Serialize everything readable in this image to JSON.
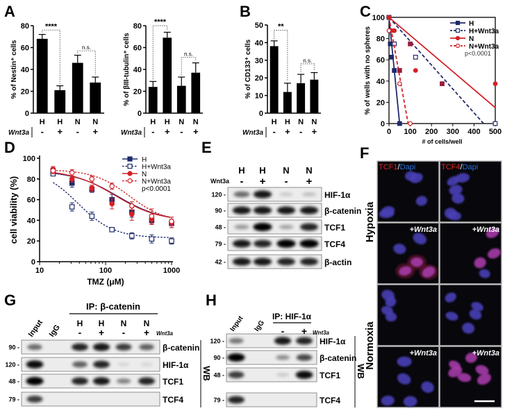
{
  "panel_labels": [
    "A",
    "B",
    "C",
    "D",
    "E",
    "F",
    "G",
    "H"
  ],
  "chart_data": [
    {
      "id": "A1",
      "type": "bar",
      "ylabel": "% of Nestin⁺ cells",
      "ylim": [
        0,
        80
      ],
      "yticks": [
        0,
        20,
        40,
        60,
        80
      ],
      "categories": [
        "H",
        "H",
        "N",
        "N"
      ],
      "wnt3a_label": "Wnt3a",
      "wnt3a": [
        "-",
        "+",
        "-",
        "+"
      ],
      "values": [
        68,
        21,
        46,
        28
      ],
      "errors": [
        4,
        4,
        7,
        5
      ],
      "significance": [
        {
          "pair": [
            0,
            1
          ],
          "label": "****",
          "top": 76
        },
        {
          "pair": [
            2,
            3
          ],
          "label": "n.s.",
          "top": 57
        }
      ]
    },
    {
      "id": "A2",
      "type": "bar",
      "ylabel": "% of βIII-tubulin⁺ cells",
      "ylim": [
        0,
        80
      ],
      "yticks": [
        0,
        20,
        40,
        60,
        80
      ],
      "categories": [
        "H",
        "H",
        "N",
        "N"
      ],
      "wnt3a_label": "Wnt3a",
      "wnt3a": [
        "-",
        "+",
        "-",
        "+"
      ],
      "values": [
        24,
        69,
        25,
        37
      ],
      "errors": [
        5,
        5,
        8,
        9
      ],
      "significance": [
        {
          "pair": [
            0,
            1
          ],
          "label": "****",
          "top": 80
        },
        {
          "pair": [
            2,
            3
          ],
          "label": "n.s.",
          "top": 51
        }
      ]
    },
    {
      "id": "B",
      "type": "bar",
      "ylabel": "% of CD133⁺ cells",
      "ylim": [
        0,
        50
      ],
      "yticks": [
        0,
        10,
        20,
        30,
        40,
        50
      ],
      "categories": [
        "H",
        "H",
        "N",
        "N"
      ],
      "wnt3a_label": "Wnt3a",
      "wnt3a": [
        "-",
        "+",
        "-",
        "+"
      ],
      "values": [
        38,
        12,
        17,
        19
      ],
      "errors": [
        3,
        5,
        5,
        4
      ],
      "significance": [
        {
          "pair": [
            0,
            1
          ],
          "label": "**",
          "top": 47
        },
        {
          "pair": [
            2,
            3
          ],
          "label": "n.s.",
          "top": 28
        }
      ]
    },
    {
      "id": "C",
      "type": "line",
      "xlabel": "# of cells/well",
      "ylabel": "% of wells with no spheres",
      "xlim": [
        0,
        500
      ],
      "ylim": [
        0,
        100
      ],
      "xticks": [
        0,
        100,
        200,
        300,
        400,
        500
      ],
      "yticks": [
        0,
        20,
        40,
        60,
        80,
        100
      ],
      "annotation": "p<0.0001",
      "legend": "top-right",
      "series": [
        {
          "name": "H",
          "color": "#1f2a6b",
          "marker": "square-filled",
          "dash": false,
          "points": [
            [
              0,
              100
            ],
            [
              6,
              75
            ],
            [
              12,
              62.5
            ],
            [
              25,
              50
            ],
            [
              50,
              0
            ]
          ],
          "fit": [
            [
              0,
              100
            ],
            [
              50,
              0
            ]
          ]
        },
        {
          "name": "H+Wnt3a",
          "color": "#1f2a6b",
          "marker": "square-open",
          "dash": true,
          "points": [
            [
              0,
              100
            ],
            [
              25,
              75
            ],
            [
              125,
              62.5
            ],
            [
              500,
              0
            ]
          ],
          "fit": [
            [
              0,
              100
            ],
            [
              445,
              0
            ]
          ]
        },
        {
          "name": "N",
          "color": "#d42027",
          "marker": "circle-filled",
          "dash": false,
          "points": [
            [
              0,
              100
            ],
            [
              12,
              87.5
            ],
            [
              25,
              87.5
            ],
            [
              125,
              50
            ],
            [
              500,
              37.5
            ]
          ],
          "fit": [
            [
              0,
              100
            ],
            [
              500,
              15
            ]
          ]
        },
        {
          "name": "N+Wnt3a",
          "color": "#d42027",
          "marker": "circle-open",
          "dash": true,
          "points": [
            [
              0,
              87.5
            ],
            [
              50,
              37.5
            ],
            [
              100,
              0
            ]
          ],
          "fit": [
            [
              0,
              100
            ],
            [
              90,
              0
            ]
          ]
        },
        {
          "name": "overlap",
          "color": "#9b1b3a",
          "marker": "square-filled",
          "dash": false,
          "legend": false,
          "points": [
            [
              50,
              50
            ],
            [
              100,
              75
            ],
            [
              250,
              37.5
            ]
          ],
          "fit": []
        }
      ]
    },
    {
      "id": "D",
      "type": "line",
      "xlabel": "TMZ (μM)",
      "ylabel": "cell viability (%)",
      "xscale": "log",
      "xlim": [
        10,
        1000
      ],
      "ylim": [
        0,
        100
      ],
      "xticks": [
        10,
        100,
        1000
      ],
      "yticks": [
        0,
        20,
        40,
        60,
        80,
        100
      ],
      "annotation": "p<0.0001",
      "legend": "top-right",
      "x": [
        16,
        31,
        62,
        125,
        250,
        500,
        1000
      ],
      "series": [
        {
          "name": "H",
          "color": "#1f2a6b",
          "marker": "square-filled",
          "dash": false,
          "values": [
            88,
            76,
            70,
            60,
            48,
            40,
            37
          ],
          "errors": [
            3,
            4,
            3,
            5,
            5,
            4,
            4
          ],
          "fit": {
            "top": 88,
            "bottom": 39,
            "ec50": 150,
            "hill": 1.3
          }
        },
        {
          "name": "H+Wnt3a",
          "color": "#1f2a6b",
          "marker": "square-open",
          "dash": true,
          "values": [
            85,
            53,
            44,
            31,
            25,
            22,
            20
          ],
          "errors": [
            2,
            4,
            4,
            2,
            3,
            4,
            3
          ],
          "fit": {
            "top": 90,
            "bottom": 23,
            "ec50": 38,
            "hill": 1.6
          }
        },
        {
          "name": "N",
          "color": "#d42027",
          "marker": "circle-filled",
          "dash": false,
          "values": [
            89,
            80,
            71,
            56,
            46,
            41,
            38
          ],
          "errors": [
            3,
            3,
            3,
            5,
            6,
            5,
            5
          ],
          "fit": {
            "top": 89,
            "bottom": 39,
            "ec50": 140,
            "hill": 1.3
          }
        },
        {
          "name": "N+Wnt3a",
          "color": "#d42027",
          "marker": "circle-open",
          "dash": true,
          "values": [
            88,
            86,
            80,
            73,
            54,
            44,
            39
          ],
          "errors": [
            3,
            3,
            3,
            3,
            4,
            7,
            4
          ],
          "fit": {
            "top": 89,
            "bottom": 38,
            "ec50": 230,
            "hill": 1.6
          }
        }
      ]
    }
  ],
  "blot_E": {
    "lanes_top": [
      "H",
      "H",
      "N",
      "N"
    ],
    "wnt3a_label": "Wnt3a",
    "wnt3a": [
      "-",
      "+",
      "-",
      "+"
    ],
    "rows": [
      {
        "mw": "120 -",
        "label": "HIF-1α",
        "bands": [
          0.55,
          0.9,
          0.15,
          0.2
        ]
      },
      {
        "mw": "90 -",
        "label": "β-catenin",
        "bands": [
          0.9,
          0.9,
          0.9,
          0.9
        ]
      },
      {
        "mw": "48 -",
        "label": "TCF1",
        "bands": [
          0.35,
          1.0,
          0.3,
          0.85
        ]
      },
      {
        "mw": "79 -",
        "label": "TCF4",
        "bands": [
          0.9,
          0.85,
          1.0,
          1.0
        ]
      },
      {
        "mw": "42 -",
        "label": "β-actin",
        "bands": [
          0.9,
          0.9,
          0.85,
          0.85
        ]
      }
    ]
  },
  "blot_G": {
    "ip_label": "IP: β-catenin",
    "lanes_rot": [
      "Input",
      "IgG"
    ],
    "lanes_top": [
      "H",
      "H",
      "N",
      "N"
    ],
    "wnt3a_label": "Wnt3a",
    "wnt3a": [
      "-",
      "+",
      "-",
      "+"
    ],
    "wb_label": "WB",
    "rows": [
      {
        "mw": "90 -",
        "label": "β-catenin",
        "bands": [
          0.55,
          0,
          0.85,
          0.9,
          0.75,
          0.6
        ]
      },
      {
        "mw": "120 -",
        "label": "HIF-1α",
        "bands": [
          0.95,
          0,
          0.6,
          0.85,
          0.1,
          0.1
        ]
      },
      {
        "mw": "48 -",
        "label": "TCF1",
        "bands": [
          1.0,
          0,
          0.85,
          0.9,
          0.45,
          0.85
        ]
      },
      {
        "mw": "79 -",
        "label": "TCF4",
        "bands": [
          0.75,
          0,
          0,
          0,
          0,
          0
        ]
      }
    ]
  },
  "blot_H": {
    "ip_label": "IP: HIF-1α",
    "lanes_rot": [
      "Input",
      "IgG"
    ],
    "wnt3a_label": "Wnt3a",
    "wnt3a": [
      "-",
      "+"
    ],
    "wb_label": "WB",
    "rows": [
      {
        "mw": "120 -",
        "label": "HIF-1α",
        "bands": [
          0.5,
          0,
          0.9,
          0.85
        ]
      },
      {
        "mw": "90 -",
        "label": "β-catenin",
        "bands": [
          1.0,
          0,
          0.4,
          0.7
        ]
      },
      {
        "mw": "48 -",
        "label": "TCF1",
        "bands": [
          0.75,
          0,
          0.15,
          0.95
        ]
      },
      {
        "mw": "79 -",
        "label": "TCF4",
        "bands": [
          0.85,
          0,
          0,
          0
        ]
      }
    ]
  },
  "panel_F": {
    "col_labels": [
      {
        "a": "TCF1",
        "b": "/",
        "c": "Dapi"
      },
      {
        "a": "TCF4",
        "b": "/",
        "c": "Dapi"
      }
    ],
    "row_labels": [
      "Hypoxia",
      "Normoxia"
    ],
    "treatment_label": "+Wnt3a",
    "colors": {
      "red": "#e0241c",
      "blue": "#2d6fd6",
      "nucleus": "#4a3fb5"
    }
  }
}
